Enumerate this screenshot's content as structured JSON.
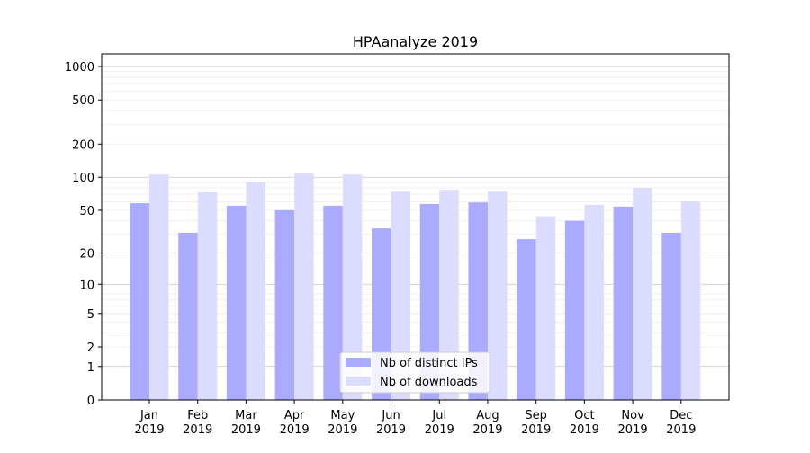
{
  "chart_data": {
    "type": "bar",
    "title": "HPAanalyze 2019",
    "xlabel": "",
    "ylabel": "",
    "scale": "symlog",
    "categories": [
      [
        "Jan",
        "2019"
      ],
      [
        "Feb",
        "2019"
      ],
      [
        "Mar",
        "2019"
      ],
      [
        "Apr",
        "2019"
      ],
      [
        "May",
        "2019"
      ],
      [
        "Jun",
        "2019"
      ],
      [
        "Jul",
        "2019"
      ],
      [
        "Aug",
        "2019"
      ],
      [
        "Sep",
        "2019"
      ],
      [
        "Oct",
        "2019"
      ],
      [
        "Nov",
        "2019"
      ],
      [
        "Dec",
        "2019"
      ]
    ],
    "yticks": [
      "0",
      "1",
      "2",
      "5",
      "10",
      "20",
      "50",
      "100",
      "200",
      "500",
      "1000"
    ],
    "ylim": [
      0,
      1300
    ],
    "grid": true,
    "legend_position": "bottom-center",
    "series": [
      {
        "name": "Nb of distinct IPs",
        "color": "#aaaaff",
        "values": [
          58,
          31,
          55,
          50,
          55,
          34,
          57,
          59,
          27,
          40,
          54,
          31
        ]
      },
      {
        "name": "Nb of downloads",
        "color": "#dcdcff",
        "values": [
          106,
          73,
          90,
          110,
          106,
          74,
          77,
          74,
          44,
          56,
          80,
          60
        ]
      }
    ]
  }
}
